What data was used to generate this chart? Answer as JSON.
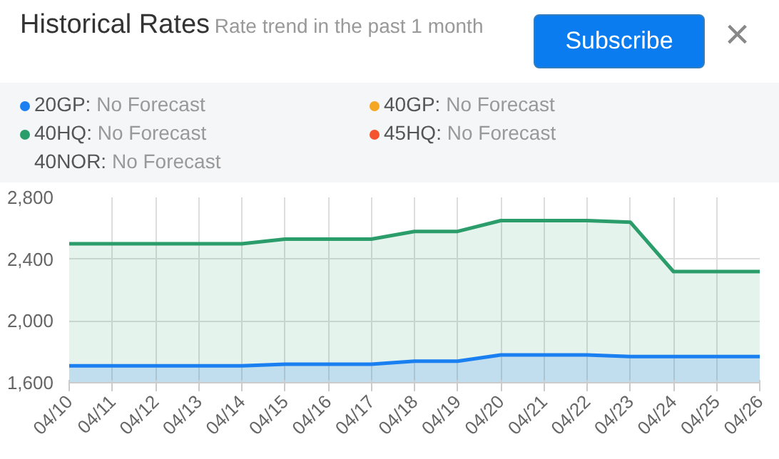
{
  "chart_data": {
    "type": "area",
    "title": "Historical Rates",
    "subtitle": "Rate trend in the past 1 month",
    "annotations": [
      "Subscribe",
      "×"
    ],
    "categories": [
      "04/10",
      "04/11",
      "04/12",
      "04/13",
      "04/14",
      "04/15",
      "04/16",
      "04/17",
      "04/18",
      "04/19",
      "04/20",
      "04/21",
      "04/22",
      "04/23",
      "04/24",
      "04/25",
      "04/26"
    ],
    "series": [
      {
        "name": "20GP: No Forecast",
        "color": "#1a7ff0",
        "values": [
          1710,
          1710,
          1710,
          1710,
          1710,
          1720,
          1720,
          1720,
          1740,
          1740,
          1780,
          1780,
          1780,
          1770,
          1770,
          1770,
          1770
        ]
      },
      {
        "name": "40GP: No Forecast",
        "color": "#f5a623",
        "values": [
          null,
          null,
          null,
          null,
          null,
          null,
          null,
          null,
          null,
          null,
          null,
          null,
          null,
          null,
          null,
          null,
          null
        ]
      },
      {
        "name": "40HQ: No Forecast",
        "color": "#2a9d6a",
        "values": [
          2500,
          2500,
          2500,
          2500,
          2500,
          2530,
          2530,
          2530,
          2580,
          2580,
          2650,
          2650,
          2650,
          2640,
          2320,
          2320,
          2320
        ]
      },
      {
        "name": "45HQ: No Forecast",
        "color": "#f5532d",
        "values": [
          null,
          null,
          null,
          null,
          null,
          null,
          null,
          null,
          null,
          null,
          null,
          null,
          null,
          null,
          null,
          null,
          null
        ]
      },
      {
        "name": "40NOR: No Forecast",
        "values": [
          null,
          null,
          null,
          null,
          null,
          null,
          null,
          null,
          null,
          null,
          null,
          null,
          null,
          null,
          null,
          null,
          null
        ]
      }
    ],
    "ylim": [
      1600,
      2800
    ],
    "yticks": [
      {
        "value": 1600,
        "label": "1,600"
      },
      {
        "value": 2000,
        "label": "2,000"
      },
      {
        "value": 2400,
        "label": "2,400"
      },
      {
        "value": 2800,
        "label": "2,800"
      }
    ],
    "grid": true,
    "legend": "top"
  }
}
